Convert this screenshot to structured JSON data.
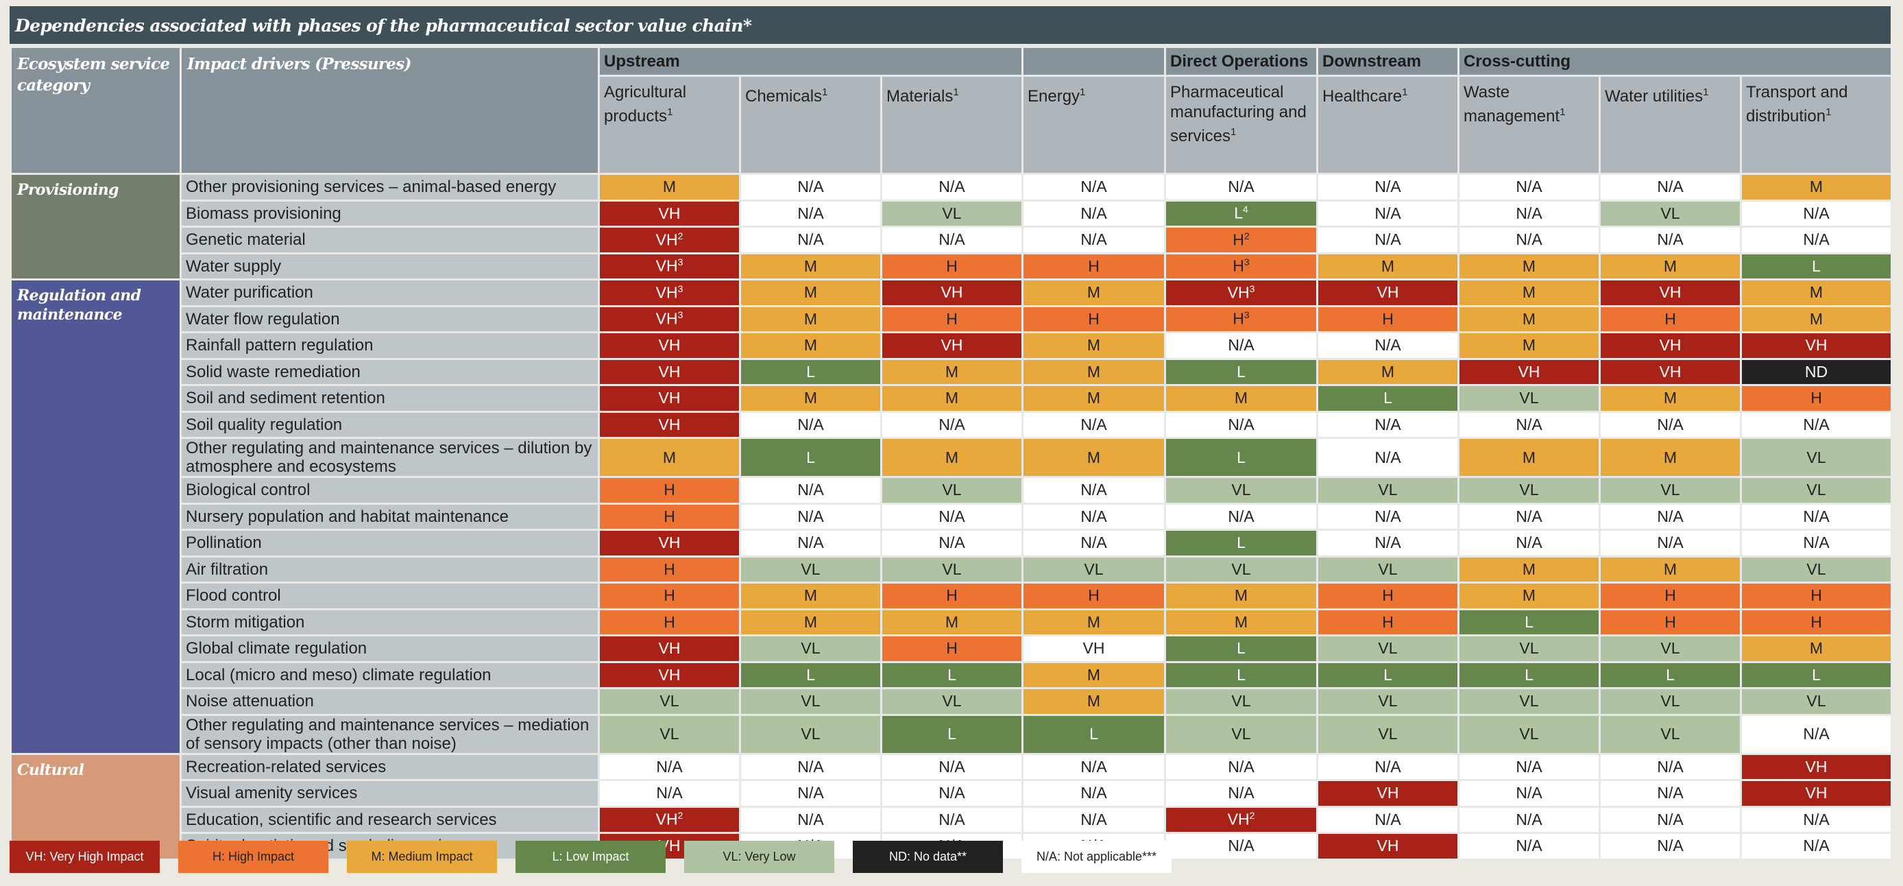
{
  "title": "Dependencies associated with phases of the pharmaceutical sector value chain*",
  "headers": {
    "category": "Ecosystem service category",
    "drivers": "Impact drivers (Pressures)",
    "phases": [
      {
        "label": "Upstream",
        "span": 3
      },
      {
        "label": "",
        "span": 1
      },
      {
        "label": "Direct Operations",
        "span": 1
      },
      {
        "label": "Downstream",
        "span": 1
      },
      {
        "label": "Cross-cutting",
        "span": 3
      }
    ],
    "columns": [
      {
        "label": "Agricultural products",
        "sup": "1"
      },
      {
        "label": "Chemicals",
        "sup": "1"
      },
      {
        "label": "Materials",
        "sup": "1"
      },
      {
        "label": "Energy",
        "sup": "1"
      },
      {
        "label": "Pharmaceutical manufacturing and services",
        "sup": "1"
      },
      {
        "label": "Healthcare",
        "sup": "1"
      },
      {
        "label": "Waste management",
        "sup": "1"
      },
      {
        "label": "Water utilities",
        "sup": "1"
      },
      {
        "label": "Transport and distribution",
        "sup": "1"
      }
    ]
  },
  "colors": {
    "VH": "#a92217",
    "H": "#ec7331",
    "M": "#e8a83c",
    "L": "#65874b",
    "VL": "#afc2a1",
    "ND": "#222222",
    "NA": "#ffffff",
    "Provisioning": "#747f6b",
    "Regulation and maintenance": "#525796",
    "Cultural": "#d79a78"
  },
  "chart_data": {
    "type": "heatmap",
    "title": "Dependencies associated with phases of the pharmaceutical sector value chain*",
    "x": [
      "Agricultural products",
      "Chemicals",
      "Materials",
      "Energy",
      "Pharmaceutical manufacturing and services",
      "Healthcare",
      "Waste management",
      "Water utilities",
      "Transport and distribution"
    ],
    "groups": [
      {
        "category": "Provisioning",
        "rows": [
          {
            "driver": "Other provisioning services – animal-based energy",
            "values": [
              "M",
              "N/A",
              "N/A",
              "N/A",
              "N/A",
              "N/A",
              "N/A",
              "N/A",
              "M"
            ]
          },
          {
            "driver": "Biomass provisioning",
            "values": [
              "VH",
              "N/A",
              "VL",
              "N/A",
              "L⁴",
              "N/A",
              "N/A",
              "VL",
              "N/A"
            ]
          },
          {
            "driver": "Genetic material",
            "values": [
              "VH²",
              "N/A",
              "N/A",
              "N/A",
              "H²",
              "N/A",
              "N/A",
              "N/A",
              "N/A"
            ]
          },
          {
            "driver": "Water supply",
            "values": [
              "VH³",
              "M",
              "H",
              "H",
              "H³",
              "M",
              "M",
              "M",
              "L"
            ]
          }
        ]
      },
      {
        "category": "Regulation and maintenance",
        "rows": [
          {
            "driver": "Water purification",
            "values": [
              "VH³",
              "M",
              "VH",
              "M",
              "VH³",
              "VH",
              "M",
              "VH",
              "M"
            ]
          },
          {
            "driver": "Water flow regulation",
            "values": [
              "VH³",
              "M",
              "H",
              "H",
              "H³",
              "H",
              "M",
              "H",
              "M"
            ]
          },
          {
            "driver": "Rainfall pattern regulation",
            "values": [
              "VH",
              "M",
              "VH",
              "M",
              "N/A",
              "N/A",
              "M",
              "VH",
              "VH"
            ]
          },
          {
            "driver": "Solid waste remediation",
            "values": [
              "VH",
              "L",
              "M",
              "M",
              "L",
              "M",
              "VH",
              "VH",
              "ND"
            ]
          },
          {
            "driver": "Soil and sediment retention",
            "values": [
              "VH",
              "M",
              "M",
              "M",
              "M",
              "L",
              "VL",
              "M",
              "H"
            ]
          },
          {
            "driver": "Soil quality regulation",
            "values": [
              "VH",
              "N/A",
              "N/A",
              "N/A",
              "N/A",
              "N/A",
              "N/A",
              "N/A",
              "N/A"
            ]
          },
          {
            "driver": "Other regulating and maintenance services – dilution by atmosphere and ecosystems",
            "values": [
              "M",
              "L",
              "M",
              "M",
              "L",
              "N/A",
              "M",
              "M",
              "VL"
            ]
          },
          {
            "driver": "Biological control",
            "values": [
              "H",
              "N/A",
              "VL",
              "N/A",
              "VL",
              "VL",
              "VL",
              "VL",
              "VL"
            ]
          },
          {
            "driver": "Nursery population and habitat maintenance",
            "values": [
              "H",
              "N/A",
              "N/A",
              "N/A",
              "N/A",
              "N/A",
              "N/A",
              "N/A",
              "N/A"
            ]
          },
          {
            "driver": "Pollination",
            "values": [
              "VH",
              "N/A",
              "N/A",
              "N/A",
              "L",
              "N/A",
              "N/A",
              "N/A",
              "N/A"
            ]
          },
          {
            "driver": "Air filtration",
            "values": [
              "H",
              "VL",
              "VL",
              "VL",
              "VL",
              "VL",
              "M",
              "M",
              "VL"
            ]
          },
          {
            "driver": "Flood control",
            "values": [
              "H",
              "M",
              "H",
              "H",
              "M",
              "H",
              "M",
              "H",
              "H"
            ]
          },
          {
            "driver": "Storm mitigation",
            "values": [
              "H",
              "M",
              "M",
              "M",
              "M",
              "H",
              "L",
              "H",
              "H"
            ]
          },
          {
            "driver": "Global climate regulation",
            "values": [
              "VH",
              "VL",
              "H",
              "VH*",
              "L",
              "VL",
              "VL",
              "VL",
              "M"
            ]
          },
          {
            "driver": "Local (micro and meso) climate regulation",
            "values": [
              "VH",
              "L",
              "L",
              "M",
              "L",
              "L",
              "L",
              "L",
              "L"
            ]
          },
          {
            "driver": "Noise attenuation",
            "values": [
              "VL",
              "VL",
              "VL",
              "M",
              "VL",
              "VL",
              "VL",
              "VL",
              "VL"
            ]
          },
          {
            "driver": "Other regulating and maintenance services – mediation of sensory impacts (other than noise)",
            "values": [
              "VL",
              "VL",
              "L",
              "L",
              "VL",
              "VL",
              "VL",
              "VL",
              "N/A"
            ]
          }
        ]
      },
      {
        "category": "Cultural",
        "rows": [
          {
            "driver": "Recreation-related services",
            "values": [
              "N/A",
              "N/A",
              "N/A",
              "N/A",
              "N/A",
              "N/A",
              "N/A",
              "N/A",
              "VH"
            ]
          },
          {
            "driver": "Visual amenity services",
            "values": [
              "N/A",
              "N/A",
              "N/A",
              "N/A",
              "N/A",
              "VH",
              "N/A",
              "N/A",
              "VH"
            ]
          },
          {
            "driver": "Education, scientific and research services",
            "values": [
              "VH²",
              "N/A",
              "N/A",
              "N/A",
              "VH²",
              "N/A",
              "N/A",
              "N/A",
              "N/A"
            ]
          },
          {
            "driver": "Spiritual, artistic and symbolic services",
            "values": [
              "VH",
              "N/A",
              "N/A",
              "N/A",
              "N/A",
              "VH",
              "N/A",
              "N/A",
              "N/A"
            ]
          }
        ]
      }
    ],
    "legend": [
      {
        "code": "VH",
        "label": "VH: Very High Impact"
      },
      {
        "code": "H",
        "label": "H: High Impact"
      },
      {
        "code": "M",
        "label": "M: Medium Impact"
      },
      {
        "code": "L",
        "label": "L: Low Impact"
      },
      {
        "code": "VL",
        "label": "VL: Very Low"
      },
      {
        "code": "ND",
        "label": "ND: No data**"
      },
      {
        "code": "NA",
        "label": "N/A: Not applicable***"
      }
    ],
    "notes": "Energy / Global climate regulation cell reads 'VH' but is rendered with a white (N/A-style) background"
  }
}
